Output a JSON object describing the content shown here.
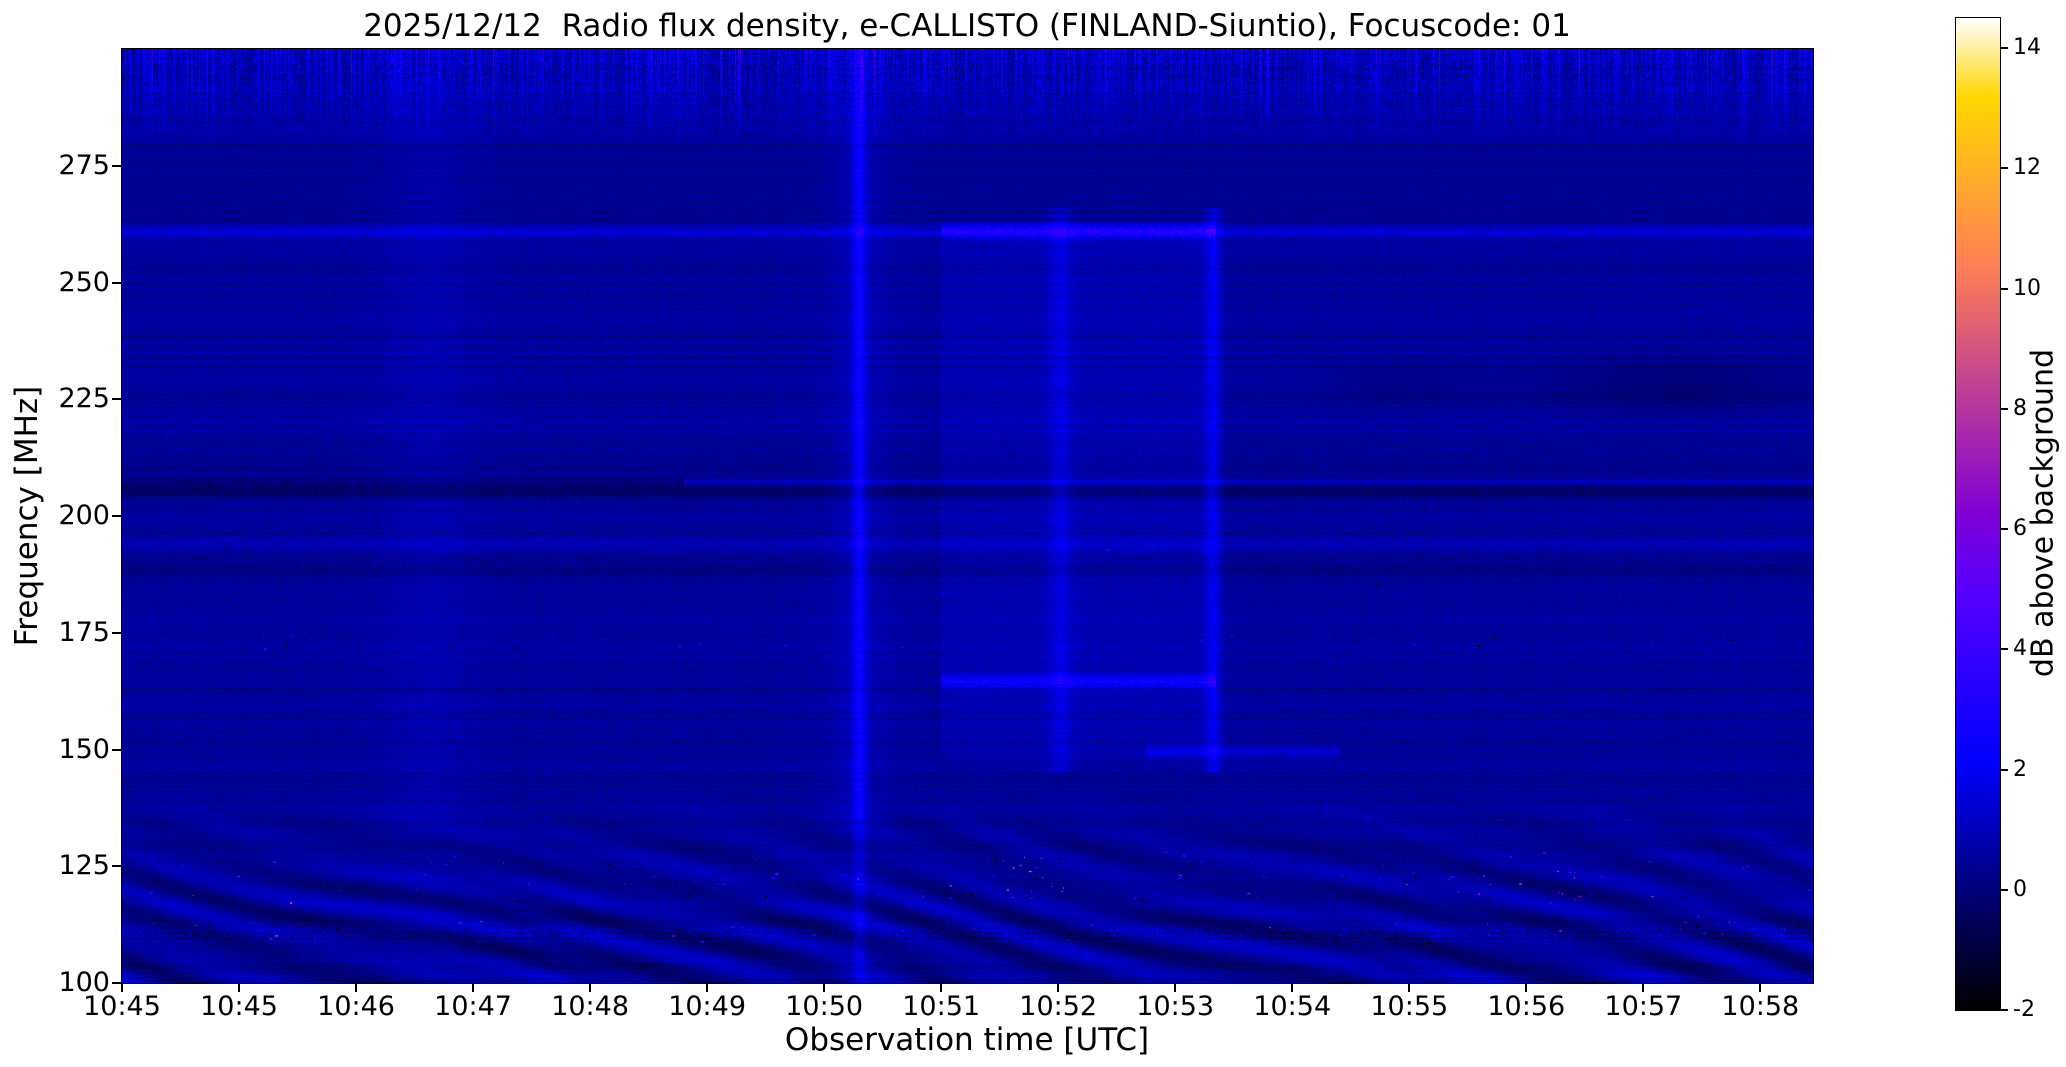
{
  "figure": {
    "title": "2025/12/12  Radio flux density, e-CALLISTO (FINLAND-Siuntio), Focuscode: 01",
    "xlabel": "Observation time [UTC]",
    "ylabel": "Frequency [MHz]",
    "colorbar_label": "dB above background"
  },
  "chart_data": {
    "type": "heatmap",
    "title": "2025/12/12  Radio flux density, e-CALLISTO (FINLAND-Siuntio), Focuscode: 01",
    "date": "2025/12/12",
    "instrument": "e-CALLISTO",
    "station": "FINLAND-Siuntio",
    "focuscode": "01",
    "xlabel": "Observation time [UTC]",
    "ylabel": "Frequency [MHz]",
    "x_ticks": [
      "10:45",
      "10:45",
      "10:46",
      "10:47",
      "10:48",
      "10:49",
      "10:50",
      "10:51",
      "10:52",
      "10:53",
      "10:54",
      "10:55",
      "10:56",
      "10:57",
      "10:58"
    ],
    "y_ticks": [
      275,
      250,
      225,
      200,
      175,
      150,
      125,
      100
    ],
    "x_start": "10:45",
    "x_span_minutes": 14.45,
    "y_range_mhz": [
      100,
      300
    ],
    "background_level_db": 0.6,
    "colorbar": {
      "label": "dB above background",
      "ticks": [
        14,
        12,
        10,
        8,
        6,
        4,
        2,
        0,
        -2
      ],
      "vmin": -2,
      "vmax": 14.5,
      "colormap": "gnuplot2-like (black-blue-magenta-yellow-white)"
    },
    "features": [
      {
        "kind": "rfi-line",
        "freq_mhz": 261,
        "extent": "full width, strongly enhanced 10:52:00-10:54:20",
        "peak_db": 4
      },
      {
        "kind": "dark-band",
        "freq_mhz": 206,
        "extent": "full width",
        "depth_db": -1
      },
      {
        "kind": "rfi-line",
        "freq_mhz": 207,
        "extent": "10:50 to end",
        "peak_db": 2
      },
      {
        "kind": "vertical-streak",
        "time": "10:51:20",
        "freq_span_mhz": [
          100,
          297
        ],
        "peak_db": 3
      },
      {
        "kind": "vertical-streak",
        "time": "10:53:00",
        "freq_span_mhz": [
          145,
          265
        ],
        "peak_db": 2
      },
      {
        "kind": "vertical-streak",
        "time": "10:54:20",
        "freq_span_mhz": [
          140,
          265
        ],
        "peak_db": 3
      },
      {
        "kind": "vertical-streak-faint",
        "time": "10:47:40",
        "freq_span_mhz": [
          100,
          297
        ],
        "peak_db": 1
      },
      {
        "kind": "enhanced-block",
        "time_span": "10:52:00-10:54:20",
        "freq_span_mhz": [
          150,
          263
        ],
        "level_db": 1
      },
      {
        "kind": "rfi-line",
        "freq_mhz": 164.5,
        "extent": "10:52:00-10:54:20",
        "peak_db": 3
      },
      {
        "kind": "rfi-line",
        "freq_mhz": 149.5,
        "extent": "10:53:45-10:55:20",
        "peak_db": 2
      },
      {
        "kind": "speckled-line",
        "freq_mhz": 173,
        "extent": "full width, sparse bright dots"
      },
      {
        "kind": "noise-band",
        "freq_span_mhz": [
          280,
          297
        ],
        "desc": "dense vertical noise streaks across whole duration"
      },
      {
        "kind": "interference-ripples",
        "freq_span_mhz": [
          100,
          140
        ],
        "desc": "wavy scalloped fringes with bright magenta/white RFI speckles and black dropouts, densest near 110-127 MHz"
      },
      {
        "kind": "dark-patch",
        "freq_mhz": 228,
        "time_span": "10:57-10:59",
        "depth_db": -1
      }
    ],
    "render": {
      "seed": 1337,
      "f_top": 300,
      "f_bottom": 100,
      "t_total_min": 14.45,
      "vmin": -2,
      "vmax": 14.5,
      "base_db": 0.55,
      "noise_db": 0.38,
      "h_lines": [
        {
          "f": 261.0,
          "sigma": 1.0,
          "amp": 1.0,
          "amp_window": 2.4,
          "win": [
            7.0,
            9.35
          ]
        },
        {
          "f": 207.3,
          "sigma": 0.55,
          "amp": 0.0,
          "amp_after": 1.1,
          "after": 4.8
        },
        {
          "f": 194.0,
          "sigma": 0.8,
          "amp": 0.45
        },
        {
          "f": 164.5,
          "sigma": 1.1,
          "amp": 0.0,
          "amp_window": 1.6,
          "win": [
            7.0,
            9.35
          ]
        },
        {
          "f": 149.5,
          "sigma": 0.9,
          "amp": 0.0,
          "amp_window": 0.9,
          "win": [
            8.75,
            10.4
          ]
        }
      ],
      "dark_lines": [
        {
          "f": 206.0,
          "sigma": 1.6,
          "amp": 1.15
        },
        {
          "f": 189.0,
          "sigma": 2.2,
          "amp": 0.45
        },
        {
          "f": 212.5,
          "sigma": 1.8,
          "amp": 0.3
        }
      ],
      "v_streaks": [
        {
          "t": 6.3,
          "sigma": 0.04,
          "amp": 1.7,
          "full": true
        },
        {
          "t": 6.3,
          "sigma": 0.2,
          "amp": 0.4,
          "full": true
        },
        {
          "t": 2.62,
          "sigma": 0.28,
          "amp": 0.3,
          "full": true
        },
        {
          "t": 8.02,
          "sigma": 0.07,
          "amp": 0.8,
          "full": false
        },
        {
          "t": 9.33,
          "sigma": 0.05,
          "amp": 1.15,
          "full": false
        }
      ],
      "block": {
        "t0": 7.0,
        "t1": 9.35,
        "f0": 148,
        "f1": 263,
        "amp": 0.32
      },
      "top_band": {
        "f_start": 279,
        "amp": 1.7
      },
      "ripples": {
        "f_max": 142,
        "amp": 0.62
      },
      "speckles": {
        "bands": [
          {
            "f0": 117,
            "f1": 128,
            "n": 110,
            "amp": 9
          },
          {
            "f0": 108,
            "f1": 113,
            "n": 60,
            "amp": 8
          },
          {
            "f0": 171.5,
            "f1": 175,
            "n": 55,
            "amp": 4.5
          },
          {
            "f0": 183,
            "f1": 196,
            "n": 30,
            "amp": 2.5
          }
        ],
        "clusters": [
          {
            "t0": 7.5,
            "t1": 8.1,
            "f0": 119,
            "f1": 127,
            "n": 16,
            "amp": 10
          },
          {
            "t0": 12.15,
            "t1": 12.65,
            "f0": 117,
            "f1": 124,
            "n": 14,
            "amp": 9
          },
          {
            "t0": 10.9,
            "t1": 11.7,
            "f0": 119,
            "f1": 126,
            "n": 12,
            "amp": 7
          },
          {
            "t0": 13.3,
            "t1": 13.8,
            "f0": 110,
            "f1": 116,
            "n": 10,
            "amp": 6
          }
        ]
      },
      "dark_patches": [
        {
          "t": 13.3,
          "ts": 0.85,
          "f": 228,
          "fs": 4.5,
          "amp": 0.75
        },
        {
          "t": 10.9,
          "ts": 0.5,
          "f": 228,
          "fs": 4.0,
          "amp": 0.4
        }
      ]
    }
  }
}
